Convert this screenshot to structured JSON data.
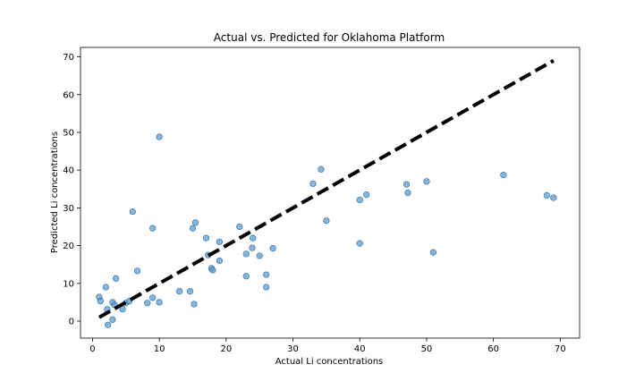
{
  "chart_data": {
    "type": "scatter",
    "title": "Actual vs. Predicted for Oklahoma Platform",
    "xlabel": "Actual Li concentrations",
    "ylabel": "Predicted Li concentrations",
    "xlim": [
      -1.8,
      72.9
    ],
    "ylim": [
      -4.5,
      72.5
    ],
    "xticks": [
      0,
      10,
      20,
      30,
      40,
      50,
      60,
      70
    ],
    "yticks": [
      0,
      10,
      20,
      30,
      40,
      50,
      60,
      70
    ],
    "grid": false,
    "colors": {
      "points_fill": "#5b9ed3",
      "points_edge": "#1f5f95",
      "reference_line": "#000000"
    },
    "reference_line": {
      "style": "dashed",
      "x": [
        1,
        69
      ],
      "y": [
        1,
        69
      ]
    },
    "points": [
      [
        1.0,
        6.4
      ],
      [
        1.2,
        5.3
      ],
      [
        2.0,
        9.0
      ],
      [
        2.2,
        3.1
      ],
      [
        2.3,
        -1.0
      ],
      [
        3.0,
        0.4
      ],
      [
        3.0,
        5.0
      ],
      [
        3.3,
        4.3
      ],
      [
        3.5,
        11.3
      ],
      [
        4.5,
        3.2
      ],
      [
        5.0,
        4.8
      ],
      [
        5.5,
        5.3
      ],
      [
        6.0,
        29.0
      ],
      [
        6.7,
        13.3
      ],
      [
        8.2,
        4.8
      ],
      [
        9.0,
        24.6
      ],
      [
        9.0,
        6.2
      ],
      [
        10.0,
        48.8
      ],
      [
        10.0,
        5.0
      ],
      [
        13.0,
        7.9
      ],
      [
        14.6,
        7.9
      ],
      [
        15.0,
        24.6
      ],
      [
        15.2,
        4.5
      ],
      [
        15.4,
        26.1
      ],
      [
        17.0,
        22.0
      ],
      [
        17.3,
        17.5
      ],
      [
        17.8,
        14.0
      ],
      [
        18.0,
        13.5
      ],
      [
        19.0,
        21.0
      ],
      [
        19.0,
        16.0
      ],
      [
        22.0,
        25.0
      ],
      [
        23.0,
        17.8
      ],
      [
        23.0,
        11.9
      ],
      [
        23.9,
        19.4
      ],
      [
        24.0,
        22.0
      ],
      [
        25.0,
        17.3
      ],
      [
        26.0,
        12.3
      ],
      [
        26.0,
        9.0
      ],
      [
        27.0,
        19.3
      ],
      [
        33.0,
        36.4
      ],
      [
        34.2,
        40.2
      ],
      [
        35.0,
        26.6
      ],
      [
        40.0,
        32.1
      ],
      [
        40.0,
        20.6
      ],
      [
        41.0,
        33.5
      ],
      [
        47.0,
        36.2
      ],
      [
        47.2,
        34.0
      ],
      [
        50.0,
        37.0
      ],
      [
        51.0,
        18.2
      ],
      [
        61.5,
        38.7
      ],
      [
        68.0,
        33.3
      ],
      [
        69.0,
        32.7
      ]
    ]
  }
}
